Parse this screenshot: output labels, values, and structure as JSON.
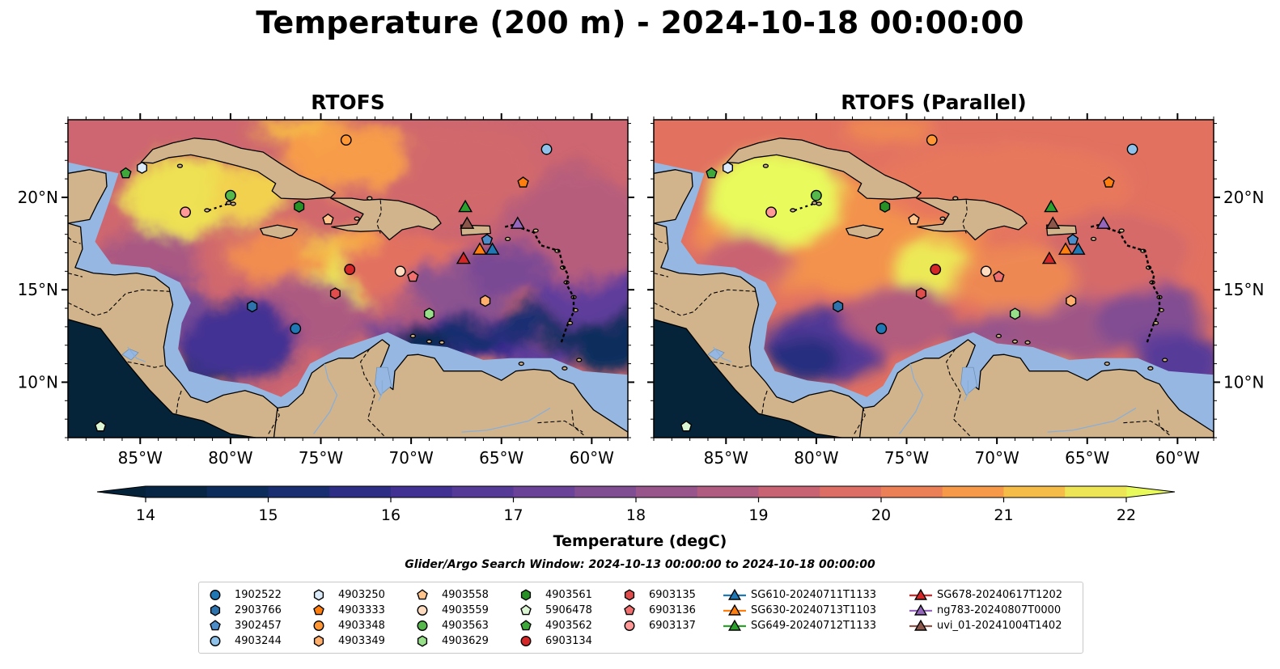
{
  "figure": {
    "title": "Temperature (200 m) - 2024-10-18 00:00:00",
    "panels": [
      {
        "title": "RTOFS",
        "variant": "rtofs"
      },
      {
        "title": "RTOFS (Parallel)",
        "variant": "parallel"
      }
    ],
    "extent": {
      "lon_min": -89,
      "lon_max": -58,
      "lat_min": 7,
      "lat_max": 24.2
    },
    "lon_ticks": [
      -85,
      -80,
      -75,
      -70,
      -65,
      -60
    ],
    "lon_tick_labels": [
      "85°W",
      "80°W",
      "75°W",
      "70°W",
      "65°W",
      "60°W"
    ],
    "lat_ticks": [
      10,
      15,
      20
    ],
    "lat_tick_labels": [
      "10°N",
      "15°N",
      "20°N"
    ],
    "colors": {
      "ocean_shelf": "#95b7e1",
      "land": "#d2b48c",
      "pacific": "#05243a",
      "coast": "#000000"
    }
  },
  "colorbar": {
    "label": "Temperature (degC)",
    "min": 14,
    "max": 22,
    "step": 0.5,
    "ticks": [
      14,
      15,
      16,
      17,
      18,
      19,
      20,
      21,
      22
    ],
    "tick_labels": [
      "14",
      "15",
      "16",
      "17",
      "18",
      "19",
      "20",
      "21",
      "22"
    ],
    "colormap": "thermal",
    "extend": "both"
  },
  "search_window": "Glider/Argo Search Window: 2024-10-13 00:00:00 to 2024-10-18 00:00:00",
  "observations": [
    {
      "id": "1902522",
      "marker": "circle",
      "color": "#1f77b4",
      "lon": -76.4,
      "lat": 12.9
    },
    {
      "id": "2903766",
      "marker": "hexagon",
      "color": "#2f73ac",
      "lon": -78.8,
      "lat": 14.1
    },
    {
      "id": "3902457",
      "marker": "pentagon",
      "color": "#4c8dc9",
      "lon": -65.8,
      "lat": 17.7
    },
    {
      "id": "4903244",
      "marker": "circle",
      "color": "#8ec2ea",
      "lon": -62.5,
      "lat": 22.6
    },
    {
      "id": "4903250",
      "marker": "hexagon",
      "color": "#dbeaf8",
      "lon": -84.9,
      "lat": 21.6
    },
    {
      "id": "4903333",
      "marker": "pentagon",
      "color": "#ff7f0e",
      "lon": -63.8,
      "lat": 20.8
    },
    {
      "id": "4903348",
      "marker": "circle",
      "color": "#ff9834",
      "lon": -73.6,
      "lat": 23.1
    },
    {
      "id": "4903349",
      "marker": "hexagon",
      "color": "#ffae6b",
      "lon": -65.9,
      "lat": 14.4
    },
    {
      "id": "4903558",
      "marker": "pentagon",
      "color": "#ffc48c",
      "lon": -74.6,
      "lat": 18.8
    },
    {
      "id": "4903559",
      "marker": "circle",
      "color": "#ffdcc0",
      "lon": -70.6,
      "lat": 16.0
    },
    {
      "id": "4903563",
      "marker": "circle",
      "color": "#55b84a",
      "lon": -80.0,
      "lat": 20.1
    },
    {
      "id": "4903629",
      "marker": "hexagon",
      "color": "#98df8a",
      "lon": -69.0,
      "lat": 13.7
    },
    {
      "id": "4903561",
      "marker": "hexagon",
      "color": "#279126",
      "lon": -76.2,
      "lat": 19.5
    },
    {
      "id": "5906478",
      "marker": "pentagon",
      "color": "#dcf5d2",
      "lon": -87.2,
      "lat": 7.6
    },
    {
      "id": "4903562",
      "marker": "pentagon",
      "color": "#3ea83a",
      "lon": -85.8,
      "lat": 21.3
    },
    {
      "id": "6903134",
      "marker": "circle",
      "color": "#d62728",
      "lon": -73.4,
      "lat": 16.1
    },
    {
      "id": "6903135",
      "marker": "hexagon",
      "color": "#e04d4d",
      "lon": -74.2,
      "lat": 14.8
    },
    {
      "id": "6903136",
      "marker": "pentagon",
      "color": "#f07070",
      "lon": -69.9,
      "lat": 15.7
    },
    {
      "id": "6903137",
      "marker": "circle",
      "color": "#ff9896",
      "lon": -82.5,
      "lat": 19.2
    }
  ],
  "gliders": [
    {
      "id": "SG610-20240711T1133",
      "color": "#1f77b4",
      "lon": -65.5,
      "lat": 17.2
    },
    {
      "id": "SG630-20240713T1103",
      "color": "#ff7f0e",
      "lon": -66.2,
      "lat": 17.2
    },
    {
      "id": "SG649-20240712T1133",
      "color": "#2ca02c",
      "lon": -67.0,
      "lat": 19.5
    },
    {
      "id": "SG678-20240617T1202",
      "color": "#d62728",
      "lon": -67.1,
      "lat": 16.7
    },
    {
      "id": "ng783-20240807T0000",
      "color": "#9467bd",
      "lon": -64.1,
      "lat": 18.6
    },
    {
      "id": "uvi_01-20241004T1402",
      "color": "#8c564b",
      "lon": -66.9,
      "lat": 18.6
    }
  ]
}
